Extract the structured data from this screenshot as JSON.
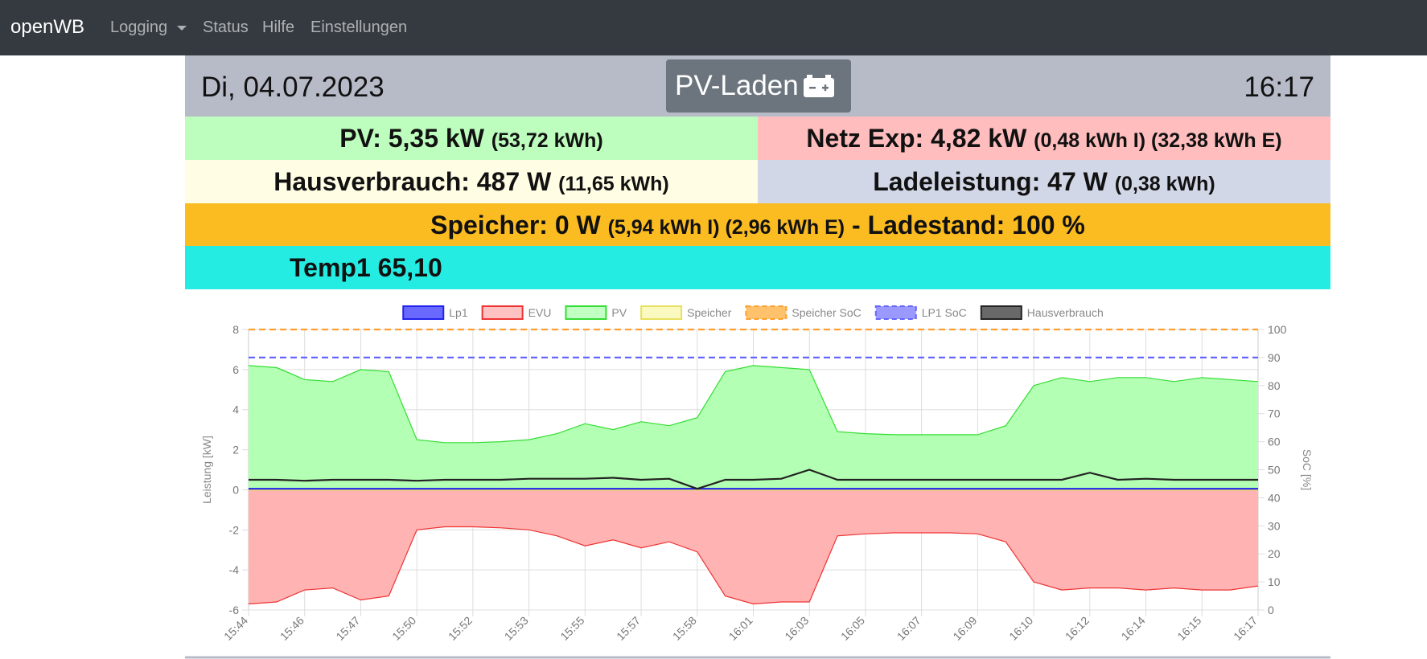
{
  "nav": {
    "brand": "openWB",
    "items": [
      "Logging",
      "Status",
      "Hilfe",
      "Einstellungen"
    ]
  },
  "header": {
    "date": "Di, 04.07.2023",
    "mode": "PV-Laden",
    "time": "16:17"
  },
  "rows": {
    "pv": {
      "label": "PV: 5,35 kW",
      "detail": "(53,72 kWh)"
    },
    "netz": {
      "label": "Netz Exp: 4,82 kW",
      "detail": "(0,48 kWh I) (32,38 kWh E)"
    },
    "haus": {
      "label": "Hausverbrauch: 487 W",
      "detail": "(11,65 kWh)"
    },
    "lade": {
      "label": "Ladeleistung: 47 W",
      "detail": "(0,38 kWh)"
    },
    "speicher": {
      "label": "Speicher: 0 W",
      "detail": "(5,94 kWh I) (2,96 kWh E)",
      "soc": "- Ladestand: 100 %"
    },
    "temp": {
      "label": "Temp1 65,10"
    }
  },
  "chart_data": {
    "type": "line",
    "ylabel": "Leistung [kW]",
    "y2label": "SoC [%]",
    "categories": [
      "15:44",
      null,
      "15:46",
      null,
      "15:47",
      null,
      "15:50",
      null,
      "15:52",
      null,
      "15:53",
      null,
      "15:55",
      null,
      "15:57",
      null,
      "15:58",
      null,
      "16:01",
      null,
      "16:03",
      null,
      "16:05",
      null,
      "16:07",
      null,
      "16:09",
      null,
      "16:10",
      null,
      "16:12",
      null,
      "16:14",
      null,
      "16:15",
      null,
      "16:17"
    ],
    "ylim": [
      -6,
      8
    ],
    "yticks": [
      -6,
      -4,
      -2,
      0,
      2,
      4,
      6,
      8
    ],
    "y2lim": [
      0,
      100
    ],
    "y2ticks": [
      0,
      10,
      20,
      30,
      40,
      50,
      60,
      70,
      80,
      90,
      100
    ],
    "grid": true,
    "series": [
      {
        "name": "Lp1",
        "color": "#2222ee",
        "fill": "#4444ff",
        "values": [
          0.05,
          0.05,
          0.05,
          0.05,
          0.05,
          0.05,
          0.05,
          0.05,
          0.05,
          0.05,
          0.05,
          0.05,
          0.05,
          0.05,
          0.05,
          0.05,
          0.05,
          0.05,
          0.05,
          0.05,
          0.05,
          0.05,
          0.05,
          0.05,
          0.05,
          0.05,
          0.05,
          0.05,
          0.05,
          0.05,
          0.05,
          0.05,
          0.05,
          0.05,
          0.05,
          0.05,
          0.05
        ]
      },
      {
        "name": "EVU",
        "color": "#ee3333",
        "fill": "#ffb3b3",
        "area": true,
        "values": [
          -5.7,
          -5.6,
          -5.0,
          -4.9,
          -5.5,
          -5.3,
          -2.0,
          -1.85,
          -1.85,
          -1.9,
          -2.0,
          -2.3,
          -2.8,
          -2.5,
          -2.9,
          -2.6,
          -3.1,
          -5.3,
          -5.7,
          -5.6,
          -5.6,
          -2.3,
          -2.2,
          -2.15,
          -2.15,
          -2.15,
          -2.2,
          -2.6,
          -4.6,
          -5.0,
          -4.9,
          -4.9,
          -5.0,
          -4.9,
          -5.0,
          -5.0,
          -4.8
        ]
      },
      {
        "name": "PV",
        "color": "#33dd33",
        "fill": "#b3ffb3",
        "area": true,
        "values": [
          6.2,
          6.1,
          5.5,
          5.4,
          6.0,
          5.9,
          2.5,
          2.35,
          2.35,
          2.4,
          2.5,
          2.8,
          3.3,
          3.0,
          3.4,
          3.2,
          3.6,
          5.9,
          6.2,
          6.1,
          6.0,
          2.9,
          2.8,
          2.75,
          2.75,
          2.75,
          2.75,
          3.2,
          5.2,
          5.6,
          5.4,
          5.6,
          5.6,
          5.4,
          5.6,
          5.5,
          5.4
        ]
      },
      {
        "name": "Speicher",
        "color": "#e8e060",
        "fill": "#f8f8b0",
        "values": [
          0,
          0,
          0,
          0,
          0,
          0,
          0,
          0,
          0,
          0,
          0,
          0,
          0,
          0,
          0,
          0,
          0,
          0,
          0,
          0,
          0,
          0,
          0,
          0,
          0,
          0,
          0,
          0,
          0,
          0,
          0,
          0,
          0,
          0,
          0,
          0,
          0
        ]
      },
      {
        "name": "Speicher SoC",
        "color": "#ffa030",
        "fill": "#ffb347",
        "dashed": true,
        "axis": "y2",
        "values": [
          100,
          100,
          100,
          100,
          100,
          100,
          100,
          100,
          100,
          100,
          100,
          100,
          100,
          100,
          100,
          100,
          100,
          100,
          100,
          100,
          100,
          100,
          100,
          100,
          100,
          100,
          100,
          100,
          100,
          100,
          100,
          100,
          100,
          100,
          100,
          100,
          100
        ]
      },
      {
        "name": "LP1 SoC",
        "color": "#6666ff",
        "fill": "#8080ff",
        "dashed": true,
        "axis": "y2",
        "values": [
          90,
          90,
          90,
          90,
          90,
          90,
          90,
          90,
          90,
          90,
          90,
          90,
          90,
          90,
          90,
          90,
          90,
          90,
          90,
          90,
          90,
          90,
          90,
          90,
          90,
          90,
          90,
          90,
          90,
          90,
          90,
          90,
          90,
          90,
          90,
          90,
          90
        ]
      },
      {
        "name": "Hausverbrauch",
        "color": "#222222",
        "fill": "#444444",
        "values": [
          0.5,
          0.5,
          0.45,
          0.5,
          0.5,
          0.5,
          0.45,
          0.5,
          0.5,
          0.5,
          0.55,
          0.55,
          0.55,
          0.6,
          0.5,
          0.55,
          0.05,
          0.5,
          0.5,
          0.55,
          1.0,
          0.5,
          0.5,
          0.5,
          0.5,
          0.5,
          0.5,
          0.5,
          0.5,
          0.5,
          0.85,
          0.5,
          0.55,
          0.5,
          0.5,
          0.5,
          0.5
        ]
      }
    ]
  }
}
